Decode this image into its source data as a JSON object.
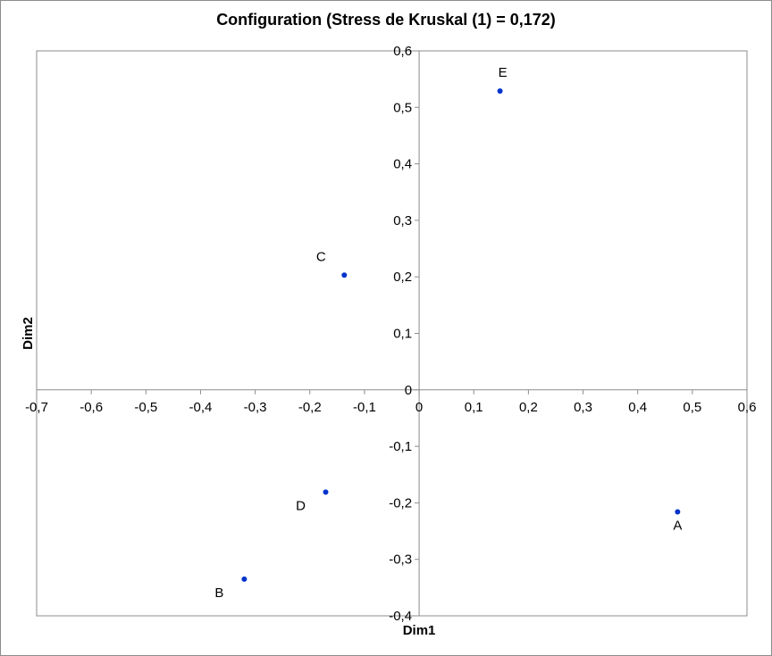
{
  "chart_data": {
    "type": "scatter",
    "title": "Configuration (Stress de Kruskal (1) = 0,172)",
    "xlabel": "Dim1",
    "ylabel": "Dim2",
    "xlim": [
      -0.7,
      0.6
    ],
    "ylim": [
      -0.4,
      0.6
    ],
    "xticks": [
      "-0,7",
      "-0,6",
      "-0,5",
      "-0,4",
      "-0,3",
      "-0,2",
      "-0,1",
      "0",
      "0,1",
      "0,2",
      "0,3",
      "0,4",
      "0,5",
      "0,6"
    ],
    "yticks": [
      "-0,4",
      "-0,3",
      "-0,2",
      "-0,1",
      "0",
      "0,1",
      "0,2",
      "0,3",
      "0,4",
      "0,5",
      "0,6"
    ],
    "grid": false,
    "marker_color": "#0033cc",
    "points": [
      {
        "label": "A",
        "x": 0.473,
        "y": -0.216,
        "label_pos": "below"
      },
      {
        "label": "B",
        "x": -0.32,
        "y": -0.335,
        "label_pos": "below-left"
      },
      {
        "label": "C",
        "x": -0.137,
        "y": 0.203,
        "label_pos": "above-left"
      },
      {
        "label": "D",
        "x": -0.171,
        "y": -0.181,
        "label_pos": "below-left"
      },
      {
        "label": "E",
        "x": 0.148,
        "y": 0.529,
        "label_pos": "above"
      }
    ]
  }
}
